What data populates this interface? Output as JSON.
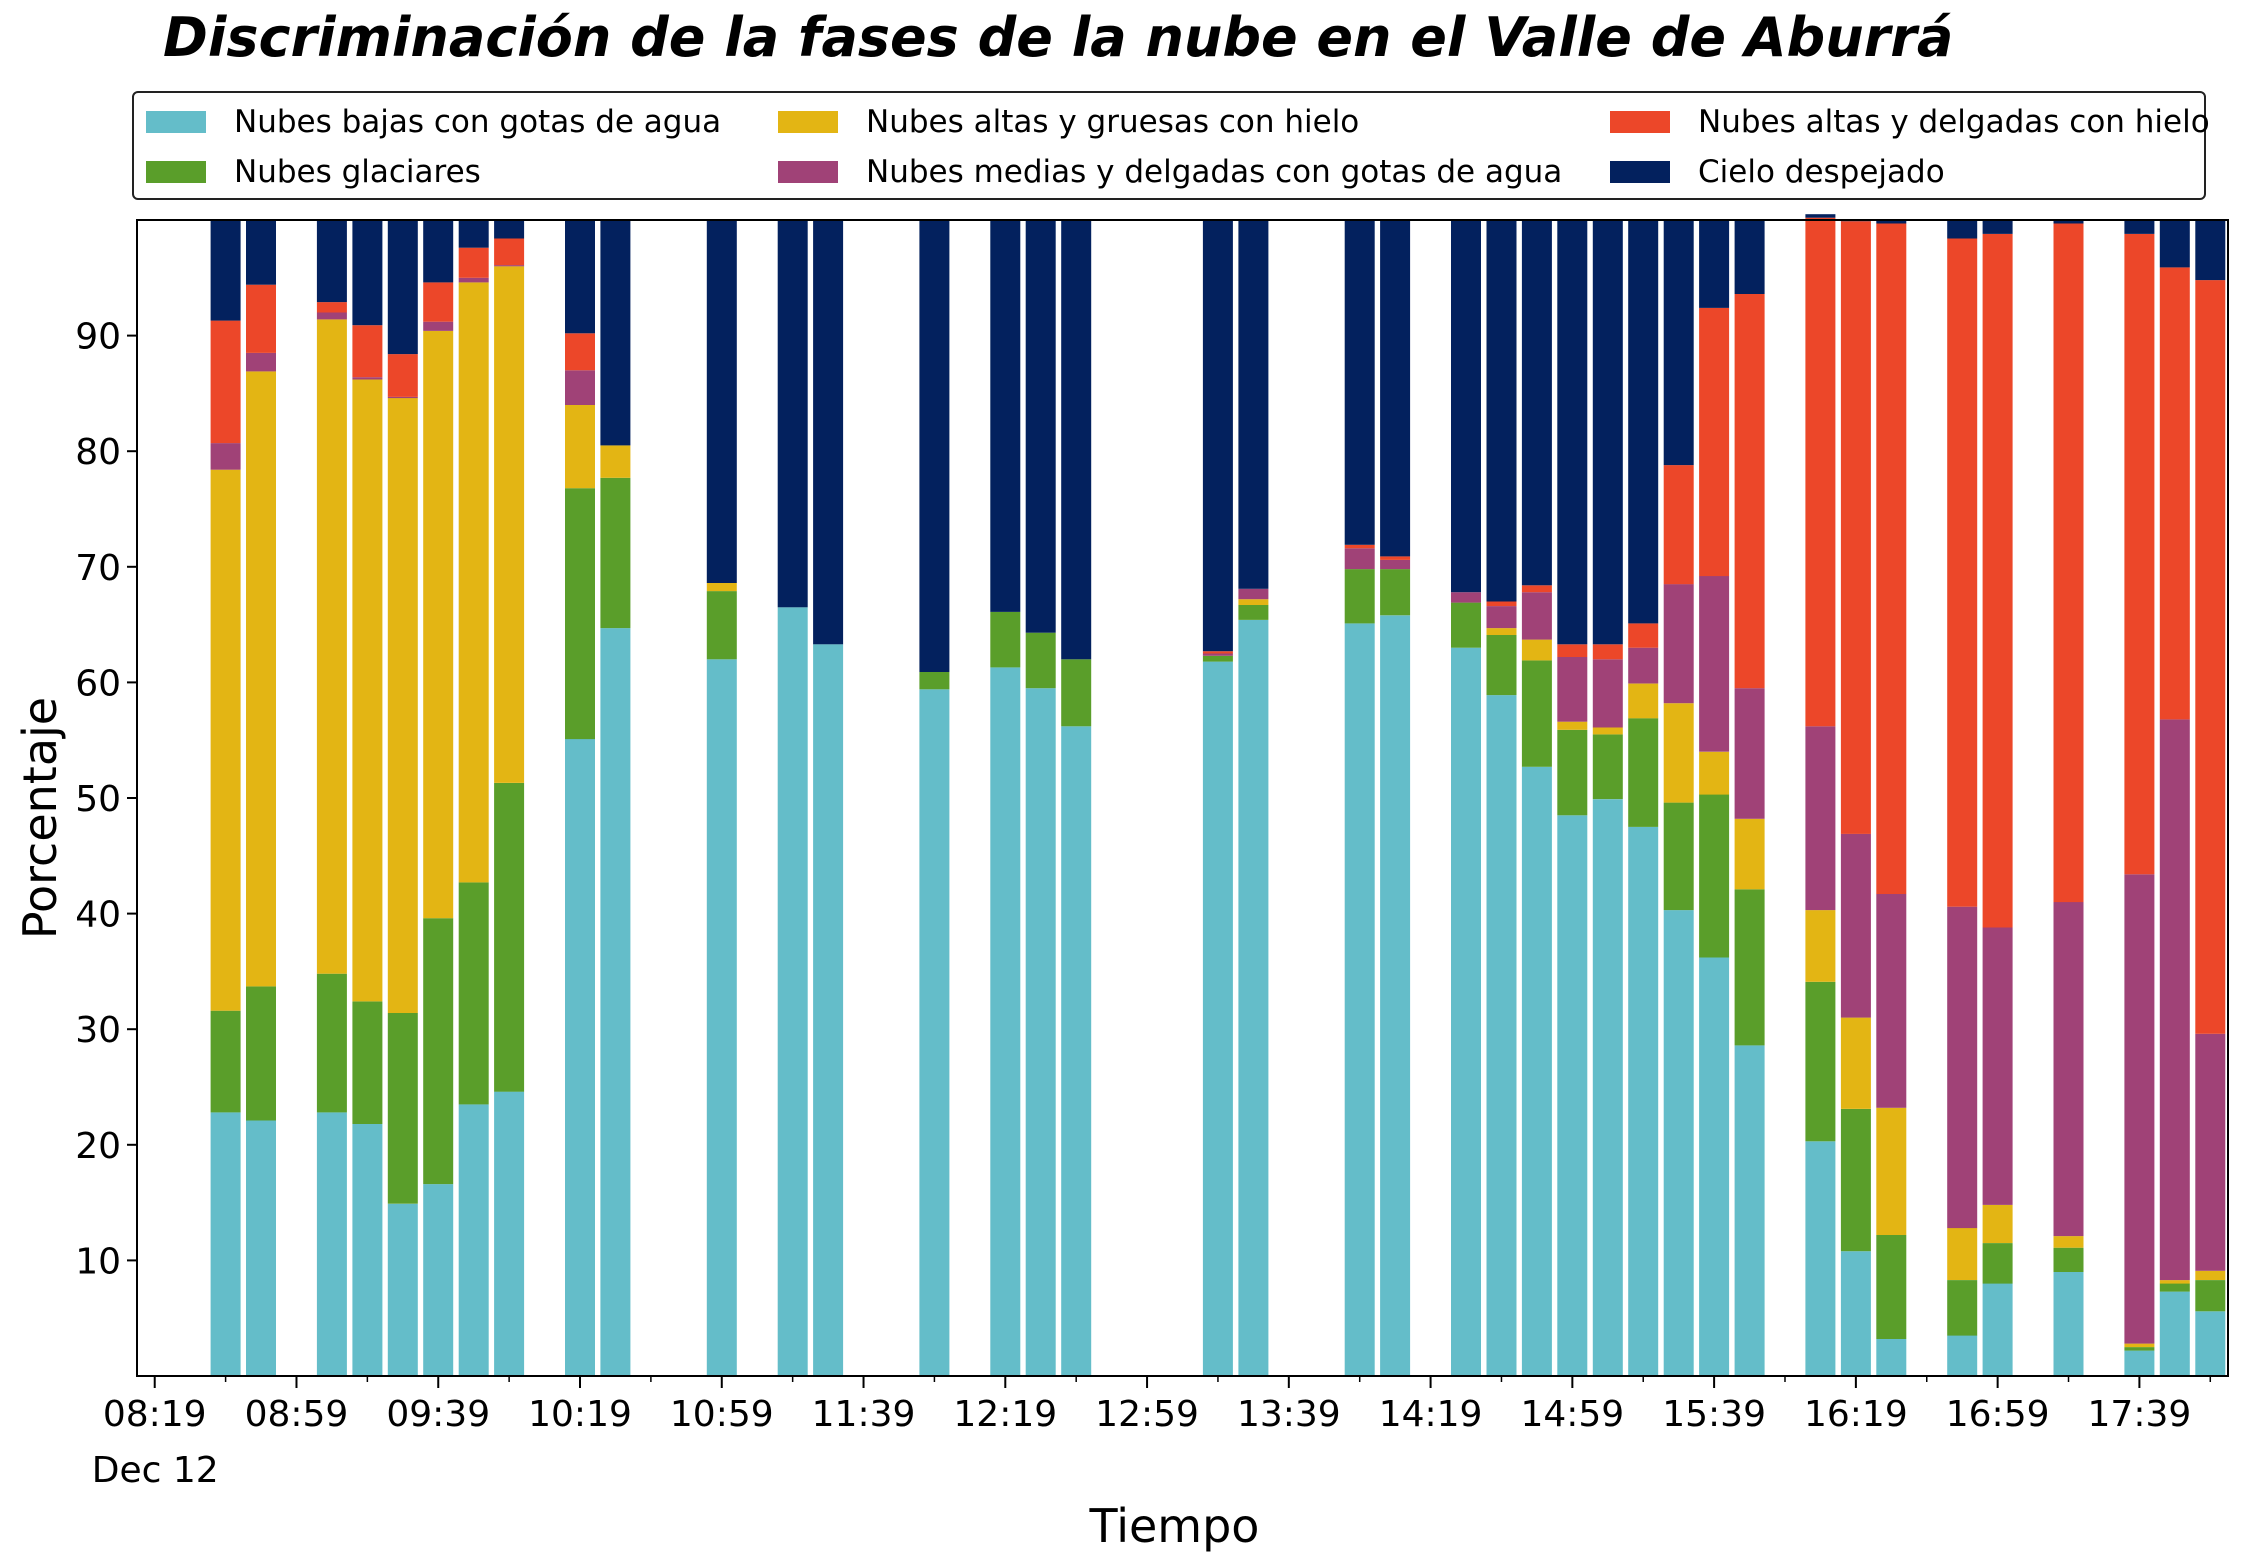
{
  "chart_data": {
    "type": "bar",
    "stacked": true,
    "title": "Discriminación de la fases de la nube en el Valle de Aburrá",
    "xlabel": "Tiempo",
    "ylabel": "Porcentaje",
    "x_date_label": "Dec 12",
    "ylim": [
      0,
      100
    ],
    "yticks": [
      10,
      20,
      30,
      40,
      50,
      60,
      70,
      80,
      90
    ],
    "xticks": [
      "08:19",
      "08:59",
      "09:39",
      "10:19",
      "10:59",
      "11:39",
      "12:19",
      "12:59",
      "13:39",
      "14:19",
      "14:59",
      "15:39",
      "16:19",
      "16:59",
      "17:39"
    ],
    "legend_position": "top",
    "grid": false,
    "series": [
      {
        "name": "Nubes bajas con gotas de agua",
        "color": "#64bdc9"
      },
      {
        "name": "Nubes glaciares",
        "color": "#5a9e2a"
      },
      {
        "name": "Nubes altas y gruesas con hielo",
        "color": "#e3b514"
      },
      {
        "name": "Nubes medias y delgadas con gotas de agua",
        "color": "#a04277"
      },
      {
        "name": "Nubes altas y delgadas con hielo",
        "color": "#ec4729"
      },
      {
        "name": "Cielo despejado",
        "color": "#03215e"
      }
    ],
    "bars": [
      {
        "time": "08:39",
        "values": [
          22.8,
          8.8,
          46.8,
          2.3,
          10.6,
          8.7
        ]
      },
      {
        "time": "08:49",
        "values": [
          22.1,
          11.6,
          53.2,
          1.6,
          5.9,
          5.6
        ]
      },
      {
        "time": "09:09",
        "values": [
          22.8,
          12.0,
          56.6,
          0.6,
          0.9,
          7.1
        ]
      },
      {
        "time": "09:19",
        "values": [
          21.8,
          10.6,
          53.8,
          0.2,
          4.5,
          9.1
        ]
      },
      {
        "time": "09:29",
        "values": [
          14.9,
          16.5,
          53.2,
          0.1,
          3.7,
          11.6
        ]
      },
      {
        "time": "09:39",
        "values": [
          16.6,
          23.0,
          50.8,
          0.8,
          3.4,
          5.4
        ]
      },
      {
        "time": "09:49",
        "values": [
          23.5,
          19.2,
          51.9,
          0.4,
          2.6,
          2.4
        ]
      },
      {
        "time": "09:59",
        "values": [
          24.6,
          26.7,
          44.7,
          0.1,
          2.3,
          1.6
        ]
      },
      {
        "time": "10:19",
        "values": [
          55.1,
          21.7,
          7.2,
          3.0,
          3.2,
          9.8
        ]
      },
      {
        "time": "10:29",
        "values": [
          64.7,
          13.0,
          2.8,
          0.0,
          0.0,
          19.5
        ]
      },
      {
        "time": "10:59",
        "values": [
          62.0,
          5.9,
          0.7,
          0.0,
          0.0,
          31.4
        ]
      },
      {
        "time": "11:19",
        "values": [
          66.5,
          0.0,
          0.0,
          0.0,
          0.0,
          33.5
        ]
      },
      {
        "time": "11:29",
        "values": [
          63.3,
          0.0,
          0.0,
          0.0,
          0.0,
          36.7
        ]
      },
      {
        "time": "11:59",
        "values": [
          59.4,
          1.5,
          0.0,
          0.0,
          0.0,
          39.1
        ]
      },
      {
        "time": "12:19",
        "values": [
          61.3,
          4.8,
          0.0,
          0.0,
          0.0,
          33.9
        ]
      },
      {
        "time": "12:29",
        "values": [
          59.5,
          4.8,
          0.0,
          0.0,
          0.0,
          35.7
        ]
      },
      {
        "time": "12:39",
        "values": [
          56.2,
          5.8,
          0.0,
          0.0,
          0.0,
          38.0
        ]
      },
      {
        "time": "13:19",
        "values": [
          61.8,
          0.5,
          0.0,
          0.2,
          0.2,
          37.3
        ]
      },
      {
        "time": "13:29",
        "values": [
          65.4,
          1.3,
          0.5,
          0.9,
          0.0,
          31.9
        ]
      },
      {
        "time": "13:59",
        "values": [
          65.1,
          4.7,
          0.0,
          1.8,
          0.3,
          28.1
        ]
      },
      {
        "time": "14:09",
        "values": [
          65.8,
          4.0,
          0.0,
          0.8,
          0.3,
          29.1
        ]
      },
      {
        "time": "14:29",
        "values": [
          63.0,
          3.9,
          0.0,
          0.9,
          0.0,
          32.2
        ]
      },
      {
        "time": "14:39",
        "values": [
          58.9,
          5.2,
          0.6,
          1.9,
          0.4,
          33.0
        ]
      },
      {
        "time": "14:49",
        "values": [
          52.7,
          9.2,
          1.8,
          4.1,
          0.6,
          31.6
        ]
      },
      {
        "time": "14:59",
        "values": [
          48.5,
          7.4,
          0.7,
          5.6,
          1.1,
          36.7
        ]
      },
      {
        "time": "15:09",
        "values": [
          49.9,
          5.6,
          0.6,
          5.9,
          1.3,
          36.7
        ]
      },
      {
        "time": "15:19",
        "values": [
          47.5,
          9.4,
          3.0,
          3.1,
          2.1,
          34.9
        ]
      },
      {
        "time": "15:29",
        "values": [
          40.3,
          9.3,
          8.6,
          10.3,
          10.3,
          21.2
        ]
      },
      {
        "time": "15:39",
        "values": [
          36.2,
          14.1,
          3.7,
          15.2,
          23.2,
          7.6
        ]
      },
      {
        "time": "15:49",
        "values": [
          28.6,
          13.5,
          6.1,
          11.3,
          34.1,
          6.4
        ]
      },
      {
        "time": "16:09",
        "values": [
          20.3,
          13.8,
          6.2,
          15.9,
          44.0,
          0.3
        ]
      },
      {
        "time": "16:19",
        "values": [
          10.8,
          12.3,
          7.9,
          15.9,
          53.0,
          0.1
        ]
      },
      {
        "time": "16:29",
        "values": [
          3.2,
          9.0,
          11.0,
          18.5,
          58.0,
          0.3
        ]
      },
      {
        "time": "16:49",
        "values": [
          3.5,
          4.8,
          4.5,
          27.8,
          57.8,
          1.6
        ]
      },
      {
        "time": "16:59",
        "values": [
          8.0,
          3.5,
          3.3,
          24.0,
          60.0,
          1.2
        ]
      },
      {
        "time": "17:19",
        "values": [
          9.0,
          2.1,
          1.0,
          28.9,
          58.7,
          0.3
        ]
      },
      {
        "time": "17:39",
        "values": [
          2.2,
          0.3,
          0.3,
          40.6,
          55.4,
          1.2
        ]
      },
      {
        "time": "17:49",
        "values": [
          7.3,
          0.7,
          0.3,
          48.5,
          39.1,
          4.1
        ]
      },
      {
        "time": "17:59",
        "values": [
          5.6,
          2.7,
          0.8,
          20.5,
          65.2,
          5.2
        ]
      }
    ]
  }
}
